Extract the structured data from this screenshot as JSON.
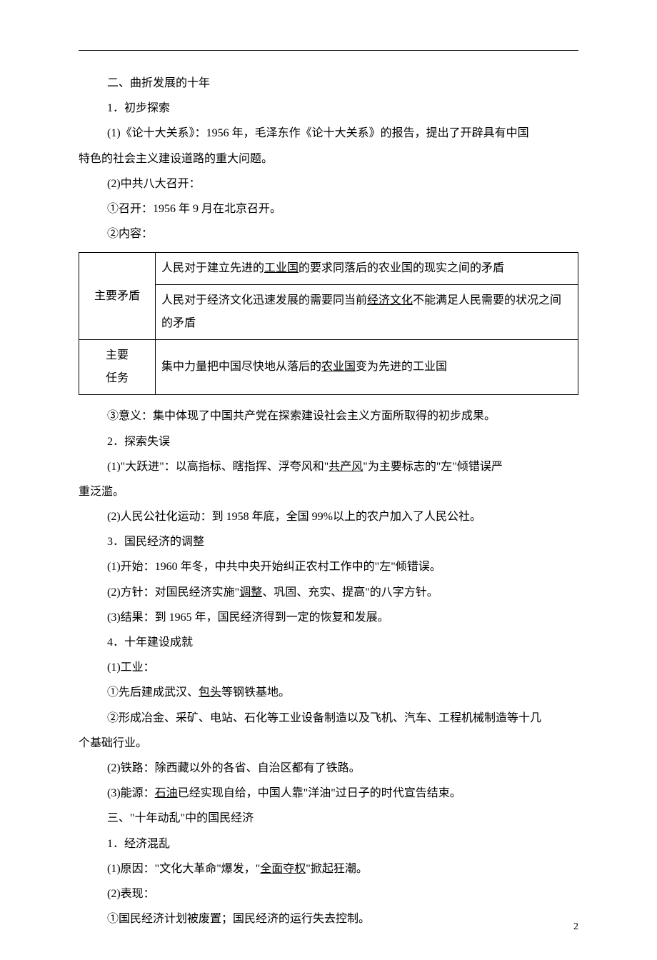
{
  "section2": {
    "title": "二、曲折发展的十年",
    "s1": {
      "title": "1．初步探索",
      "p1a": "(1)《论十大关系》：1956 年，毛泽东作《论十大关系》的报告，提出了开辟具有中国",
      "p1b": "特色的社会主义建设道路的重大问题。",
      "p2": "(2)中共八大召开：",
      "p2a": "①召开：1956 年 9 月在北京召开。",
      "p2b": "②内容：",
      "table": {
        "row1_label": "主要矛盾",
        "row1a_pre": "人民对于建立先进的",
        "row1a_u": "工业国",
        "row1a_post": "的要求同落后的农业国的现实之间的矛盾",
        "row1b_pre": "人民对于经济文化迅速发展的需要同当前",
        "row1b_u": "经济文化",
        "row1b_post": "不能满足人民需要的状况之间的矛盾",
        "row2_label_a": "主要",
        "row2_label_b": "任务",
        "row2_pre": "集中力量把中国尽快地从落后的",
        "row2_u": "农业国",
        "row2_post": "变为先进的工业国"
      },
      "p2c": "③意义：集中体现了中国共产党在探索建设社会主义方面所取得的初步成果。"
    },
    "s2": {
      "title": "2．探索失误",
      "p1a": "(1)\"大跃进\"：以高指标、瞎指挥、浮夸风和\"",
      "p1u": "共产风",
      "p1b": "\"为主要标志的\"左\"倾错误严",
      "p1c": "重泛滥。",
      "p2": "(2)人民公社化运动：到 1958 年底，全国 99%以上的农户加入了人民公社。"
    },
    "s3": {
      "title": "3．国民经济的调整",
      "p1": "(1)开始：1960 年冬，中共中央开始纠正农村工作中的\"左\"倾错误。",
      "p2a": "(2)方针：对国民经济实施\"",
      "p2u": "调整",
      "p2b": "、巩固、充实、提高\"的八字方针。",
      "p3": "(3)结果：到 1965 年，国民经济得到一定的恢复和发展。"
    },
    "s4": {
      "title": "4．十年建设成就",
      "p1": "(1)工业：",
      "p1a_pre": "①先后建成武汉、",
      "p1a_u": "包头",
      "p1a_post": "等钢铁基地。",
      "p1b_a": "②形成冶金、采矿、电站、石化等工业设备制造以及飞机、汽车、工程机械制造等十几",
      "p1b_b": "个基础行业。",
      "p2": "(2)铁路：除西藏以外的各省、自治区都有了铁路。",
      "p3_pre": "(3)能源：",
      "p3_u": "石油",
      "p3_post": "已经实现自给，中国人靠\"洋油\"过日子的时代宣告结束。"
    }
  },
  "section3": {
    "title": "三、\"十年动乱\"中的国民经济",
    "s1": {
      "title": "1．经济混乱",
      "p1_pre": "(1)原因：\"文化大革命\"爆发，\"",
      "p1_u": "全面夺权",
      "p1_post": "\"掀起狂潮。",
      "p2": "(2)表现：",
      "p2a": "①国民经济计划被废置；国民经济的运行失去控制。"
    }
  },
  "page_number": "2"
}
